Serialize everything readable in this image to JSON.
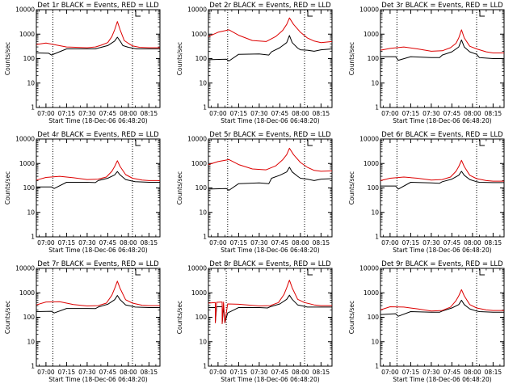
{
  "chart_data": [
    {
      "type": "line",
      "title": "Det 1r BLACK = Events, RED = LLD",
      "xlabel": "Start Time (18-Dec-06 06:48:20)",
      "ylabel": "Counts/sec",
      "yscale": "log",
      "ylim": [
        1,
        10000
      ],
      "xlim": [
        "06:53",
        "08:23"
      ],
      "x_ticks": [
        "07:00",
        "07:15",
        "07:30",
        "07:45",
        "08:00",
        "08:15"
      ],
      "y_ticks": [
        "1",
        "10",
        "100",
        "1000",
        "10000"
      ],
      "markers": [
        "07:05",
        "08:03"
      ],
      "series": [
        {
          "name": "Events",
          "color": "#000000",
          "x": [
            "06:53",
            "07:02",
            "07:04",
            "07:15",
            "07:30",
            "07:36",
            "07:38",
            "07:45",
            "07:50",
            "07:52",
            "07:54",
            "07:56",
            "08:00",
            "08:03",
            "08:06",
            "08:15",
            "08:23"
          ],
          "y": [
            170,
            165,
            140,
            250,
            250,
            250,
            270,
            340,
            520,
            750,
            520,
            340,
            290,
            270,
            250,
            250,
            250
          ]
        },
        {
          "name": "LLD",
          "color": "#dd0000",
          "x": [
            "06:53",
            "07:00",
            "07:15",
            "07:30",
            "07:36",
            "07:40",
            "07:45",
            "07:48",
            "07:50",
            "07:52",
            "07:54",
            "07:57",
            "08:00",
            "08:03",
            "08:08",
            "08:15",
            "08:23"
          ],
          "y": [
            380,
            430,
            300,
            280,
            300,
            350,
            450,
            800,
            1500,
            3300,
            1500,
            550,
            420,
            330,
            290,
            280,
            280
          ]
        }
      ]
    },
    {
      "type": "line",
      "title": "Det 2r BLACK = Events, RED = LLD",
      "xlabel": "Start Time (18-Dec-06 06:48:20)",
      "ylabel": "Counts/sec",
      "yscale": "log",
      "ylim": [
        1,
        10000
      ],
      "xlim": [
        "06:53",
        "08:23"
      ],
      "x_ticks": [
        "07:00",
        "07:15",
        "07:30",
        "07:45",
        "08:00",
        "08:15"
      ],
      "y_ticks": [
        "1",
        "10",
        "100",
        "1000",
        "10000"
      ],
      "markers": [
        "07:07",
        "08:03"
      ],
      "series": [
        {
          "name": "Events",
          "color": "#000000",
          "x": [
            "06:53",
            "07:06",
            "07:08",
            "07:15",
            "07:30",
            "07:37",
            "07:39",
            "07:45",
            "07:50",
            "07:52",
            "07:54",
            "07:58",
            "08:00",
            "08:05",
            "08:10",
            "08:15",
            "08:23"
          ],
          "y": [
            90,
            95,
            80,
            150,
            155,
            140,
            190,
            280,
            450,
            880,
            450,
            270,
            230,
            220,
            200,
            230,
            250
          ]
        },
        {
          "name": "LLD",
          "color": "#dd0000",
          "x": [
            "06:53",
            "07:00",
            "07:08",
            "07:15",
            "07:25",
            "07:35",
            "07:42",
            "07:47",
            "07:50",
            "07:52",
            "07:55",
            "08:00",
            "08:05",
            "08:10",
            "08:15",
            "08:23"
          ],
          "y": [
            800,
            1200,
            1500,
            900,
            550,
            500,
            800,
            1400,
            2500,
            4600,
            2500,
            1200,
            700,
            520,
            450,
            500
          ]
        }
      ]
    },
    {
      "type": "line",
      "title": "Det 3r BLACK = Events, RED = LLD",
      "xlabel": "Start Time (18-Dec-06 06:48:20)",
      "ylabel": "Counts/sec",
      "yscale": "log",
      "ylim": [
        1,
        10000
      ],
      "xlim": [
        "06:53",
        "08:23"
      ],
      "x_ticks": [
        "07:00",
        "07:15",
        "07:30",
        "07:45",
        "08:00",
        "08:15"
      ],
      "y_ticks": [
        "1",
        "10",
        "100",
        "1000",
        "10000"
      ],
      "markers": [
        "07:05",
        "08:03"
      ],
      "series": [
        {
          "name": "Events",
          "color": "#000000",
          "x": [
            "06:53",
            "07:04",
            "07:06",
            "07:15",
            "07:30",
            "07:36",
            "07:38",
            "07:45",
            "07:50",
            "07:52",
            "07:54",
            "07:58",
            "08:03",
            "08:05",
            "08:15",
            "08:23"
          ],
          "y": [
            120,
            120,
            85,
            120,
            110,
            110,
            140,
            190,
            300,
            580,
            300,
            190,
            150,
            110,
            100,
            100
          ]
        },
        {
          "name": "LLD",
          "color": "#dd0000",
          "x": [
            "06:53",
            "07:00",
            "07:10",
            "07:20",
            "07:30",
            "07:38",
            "07:44",
            "07:48",
            "07:50",
            "07:52",
            "07:54",
            "07:58",
            "08:03",
            "08:10",
            "08:15",
            "08:23"
          ],
          "y": [
            220,
            260,
            300,
            250,
            200,
            210,
            280,
            420,
            700,
            1500,
            700,
            320,
            250,
            190,
            170,
            170
          ]
        }
      ]
    },
    {
      "type": "line",
      "title": "Det 4r BLACK = Events, RED = LLD",
      "xlabel": "Start Time (18-Dec-06 06:48:20)",
      "ylabel": "Counts/sec",
      "yscale": "log",
      "ylim": [
        1,
        10000
      ],
      "xlim": [
        "06:53",
        "08:23"
      ],
      "x_ticks": [
        "07:00",
        "07:15",
        "07:30",
        "07:45",
        "08:00",
        "08:15"
      ],
      "y_ticks": [
        "1",
        "10",
        "100",
        "1000",
        "10000"
      ],
      "markers": [
        "07:05",
        "08:03"
      ],
      "series": [
        {
          "name": "Events",
          "color": "#000000",
          "x": [
            "06:53",
            "07:04",
            "07:06",
            "07:15",
            "07:30",
            "07:36",
            "07:38",
            "07:45",
            "07:50",
            "07:52",
            "07:54",
            "07:58",
            "08:03",
            "08:05",
            "08:15",
            "08:23"
          ],
          "y": [
            110,
            110,
            95,
            170,
            170,
            165,
            200,
            250,
            340,
            470,
            340,
            220,
            190,
            180,
            170,
            170
          ]
        },
        {
          "name": "LLD",
          "color": "#dd0000",
          "x": [
            "06:53",
            "07:00",
            "07:10",
            "07:20",
            "07:30",
            "07:38",
            "07:44",
            "07:48",
            "07:50",
            "07:52",
            "07:54",
            "07:58",
            "08:03",
            "08:10",
            "08:15",
            "08:23"
          ],
          "y": [
            210,
            270,
            300,
            260,
            220,
            230,
            280,
            480,
            750,
            1300,
            750,
            350,
            250,
            210,
            200,
            200
          ]
        }
      ]
    },
    {
      "type": "line",
      "title": "Det 5r BLACK = Events, RED = LLD",
      "xlabel": "Start Time (18-Dec-06 06:48:20)",
      "ylabel": "Counts/sec",
      "yscale": "log",
      "ylim": [
        1,
        10000
      ],
      "xlim": [
        "06:53",
        "08:23"
      ],
      "x_ticks": [
        "07:00",
        "07:15",
        "07:30",
        "07:45",
        "08:00",
        "08:15"
      ],
      "y_ticks": [
        "1",
        "10",
        "100",
        "1000",
        "10000"
      ],
      "markers": [
        "07:07",
        "08:03"
      ],
      "series": [
        {
          "name": "Events",
          "color": "#000000",
          "x": [
            "06:53",
            "07:06",
            "07:08",
            "07:15",
            "07:30",
            "07:37",
            "07:39",
            "07:45",
            "07:50",
            "07:52",
            "07:54",
            "07:58",
            "08:00",
            "08:05",
            "08:10",
            "08:15",
            "08:23"
          ],
          "y": [
            90,
            95,
            80,
            150,
            160,
            150,
            250,
            330,
            450,
            700,
            450,
            300,
            250,
            230,
            200,
            230,
            240
          ]
        },
        {
          "name": "LLD",
          "color": "#dd0000",
          "x": [
            "06:53",
            "07:00",
            "07:08",
            "07:15",
            "07:25",
            "07:35",
            "07:42",
            "07:47",
            "07:50",
            "07:52",
            "07:55",
            "08:00",
            "08:05",
            "08:10",
            "08:15",
            "08:23"
          ],
          "y": [
            900,
            1200,
            1450,
            900,
            600,
            550,
            800,
            1400,
            2300,
            4200,
            2300,
            1100,
            700,
            520,
            480,
            500
          ]
        }
      ]
    },
    {
      "type": "line",
      "title": "Det 6r BLACK = Events, RED = LLD",
      "xlabel": "Start Time (18-Dec-06 06:48:20)",
      "ylabel": "Counts/sec",
      "yscale": "log",
      "ylim": [
        1,
        10000
      ],
      "xlim": [
        "06:53",
        "08:23"
      ],
      "x_ticks": [
        "07:00",
        "07:15",
        "07:30",
        "07:45",
        "08:00",
        "08:15"
      ],
      "y_ticks": [
        "1",
        "10",
        "100",
        "1000",
        "10000"
      ],
      "markers": [
        "07:05",
        "08:03"
      ],
      "series": [
        {
          "name": "Events",
          "color": "#000000",
          "x": [
            "06:53",
            "07:04",
            "07:06",
            "07:15",
            "07:30",
            "07:36",
            "07:38",
            "07:45",
            "07:50",
            "07:52",
            "07:54",
            "07:58",
            "08:03",
            "08:05",
            "08:15",
            "08:23"
          ],
          "y": [
            120,
            120,
            90,
            170,
            160,
            155,
            180,
            230,
            330,
            480,
            330,
            220,
            180,
            170,
            165,
            165
          ]
        },
        {
          "name": "LLD",
          "color": "#dd0000",
          "x": [
            "06:53",
            "07:00",
            "07:10",
            "07:20",
            "07:30",
            "07:38",
            "07:44",
            "07:48",
            "07:50",
            "07:52",
            "07:54",
            "07:58",
            "08:03",
            "08:10",
            "08:15",
            "08:23"
          ],
          "y": [
            200,
            250,
            280,
            250,
            210,
            220,
            280,
            480,
            750,
            1350,
            750,
            330,
            240,
            200,
            190,
            190
          ]
        }
      ]
    },
    {
      "type": "line",
      "title": "Det 7r BLACK = Events, RED = LLD",
      "xlabel": "Start Time (18-Dec-06 06:48:20)",
      "ylabel": "Counts/sec",
      "yscale": "log",
      "ylim": [
        1,
        10000
      ],
      "xlim": [
        "06:53",
        "08:23"
      ],
      "x_ticks": [
        "07:00",
        "07:15",
        "07:30",
        "07:45",
        "08:00",
        "08:15"
      ],
      "y_ticks": [
        "1",
        "10",
        "100",
        "1000",
        "10000"
      ],
      "markers": [
        "07:05",
        "08:03"
      ],
      "series": [
        {
          "name": "Events",
          "color": "#000000",
          "x": [
            "06:53",
            "07:04",
            "07:06",
            "07:15",
            "07:30",
            "07:36",
            "07:38",
            "07:45",
            "07:50",
            "07:52",
            "07:54",
            "07:58",
            "08:03",
            "08:05",
            "08:15",
            "08:23"
          ],
          "y": [
            170,
            175,
            150,
            230,
            230,
            225,
            260,
            340,
            520,
            780,
            520,
            320,
            280,
            260,
            250,
            250
          ]
        },
        {
          "name": "LLD",
          "color": "#dd0000",
          "x": [
            "06:53",
            "07:00",
            "07:10",
            "07:20",
            "07:30",
            "07:38",
            "07:44",
            "07:48",
            "07:50",
            "07:52",
            "07:54",
            "07:58",
            "08:03",
            "08:10",
            "08:15",
            "08:23"
          ],
          "y": [
            320,
            420,
            430,
            330,
            290,
            300,
            380,
            800,
            1500,
            3000,
            1500,
            520,
            380,
            310,
            300,
            300
          ]
        }
      ]
    },
    {
      "type": "line",
      "title": "Det 8r BLACK = Events, RED = LLD",
      "xlabel": "Start Time (18-Dec-06 06:48:20)",
      "ylabel": "Counts/sec",
      "yscale": "log",
      "ylim": [
        1,
        10000
      ],
      "xlim": [
        "06:53",
        "08:23"
      ],
      "x_ticks": [
        "07:00",
        "07:15",
        "07:30",
        "07:45",
        "08:00",
        "08:15"
      ],
      "y_ticks": [
        "1",
        "10",
        "100",
        "1000",
        "10000"
      ],
      "markers": [
        "07:06",
        "08:03"
      ],
      "series": [
        {
          "name": "Events",
          "color": "#000000",
          "x": [
            "06:53",
            "06:58",
            "06:58",
            "06:59",
            "07:03",
            "07:03",
            "07:04",
            "07:05",
            "07:07",
            "07:15",
            "07:30",
            "07:36",
            "07:38",
            "07:45",
            "07:50",
            "07:52",
            "07:54",
            "07:58",
            "08:03",
            "08:05",
            "08:15",
            "08:23"
          ],
          "y": [
            250,
            250,
            60,
            270,
            270,
            55,
            270,
            60,
            150,
            250,
            250,
            240,
            270,
            350,
            540,
            800,
            540,
            320,
            280,
            260,
            260,
            260
          ]
        },
        {
          "name": "LLD",
          "color": "#dd0000",
          "x": [
            "06:53",
            "06:58",
            "06:58",
            "06:59",
            "07:03",
            "07:03",
            "07:04",
            "07:05",
            "07:07",
            "07:15",
            "07:30",
            "07:38",
            "07:44",
            "07:48",
            "07:50",
            "07:52",
            "07:54",
            "07:58",
            "08:03",
            "08:10",
            "08:15",
            "08:23"
          ],
          "y": [
            380,
            400,
            60,
            410,
            420,
            55,
            420,
            60,
            350,
            340,
            290,
            300,
            400,
            850,
            1600,
            3300,
            1600,
            540,
            400,
            320,
            300,
            300
          ]
        }
      ]
    },
    {
      "type": "line",
      "title": "Det 9r BLACK = Events, RED = LLD",
      "xlabel": "Start Time (18-Dec-06 06:48:20)",
      "ylabel": "Counts/sec",
      "yscale": "log",
      "ylim": [
        1,
        10000
      ],
      "xlim": [
        "06:53",
        "08:23"
      ],
      "x_ticks": [
        "07:00",
        "07:15",
        "07:30",
        "07:45",
        "08:00",
        "08:15"
      ],
      "y_ticks": [
        "1",
        "10",
        "100",
        "1000",
        "10000"
      ],
      "markers": [
        "07:05",
        "08:03"
      ],
      "series": [
        {
          "name": "Events",
          "color": "#000000",
          "x": [
            "06:53",
            "07:04",
            "07:06",
            "07:15",
            "07:30",
            "07:36",
            "07:38",
            "07:45",
            "07:50",
            "07:52",
            "07:54",
            "07:58",
            "08:03",
            "08:05",
            "08:15",
            "08:23"
          ],
          "y": [
            130,
            140,
            110,
            170,
            160,
            160,
            180,
            240,
            330,
            500,
            330,
            220,
            180,
            170,
            160,
            160
          ]
        },
        {
          "name": "LLD",
          "color": "#dd0000",
          "x": [
            "06:53",
            "07:00",
            "07:10",
            "07:20",
            "07:30",
            "07:38",
            "07:44",
            "07:48",
            "07:50",
            "07:52",
            "07:54",
            "07:58",
            "08:03",
            "08:10",
            "08:15",
            "08:23"
          ],
          "y": [
            200,
            270,
            260,
            220,
            180,
            190,
            260,
            480,
            750,
            1350,
            750,
            330,
            240,
            200,
            190,
            190
          ]
        }
      ]
    }
  ]
}
